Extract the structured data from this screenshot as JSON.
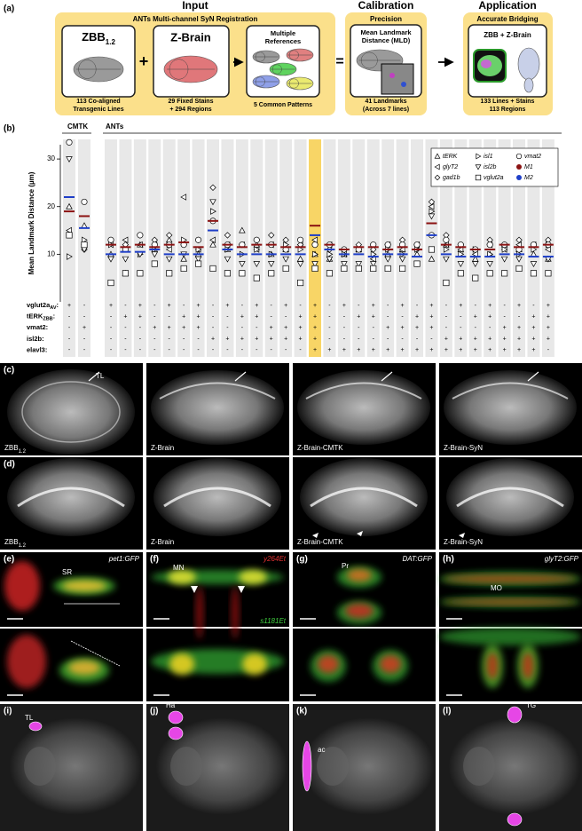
{
  "panel_a": {
    "label": "(a)",
    "input": {
      "header": "Input",
      "title": "ANTs Multi-channel SyN Registration",
      "zbb": {
        "name": "ZBB",
        "sub": "1.2",
        "caption": [
          "113 Co-aligned",
          "Transgenic Lines"
        ]
      },
      "plus": "+",
      "zbrain": {
        "name": "Z-Brain",
        "caption": [
          "29 Fixed Stains",
          "+ 294 Regions"
        ]
      },
      "references": {
        "title": [
          "Multiple",
          "References"
        ],
        "caption": "5 Common Patterns"
      }
    },
    "equals": "=",
    "calibration": {
      "header": "Calibration",
      "title": "Precision",
      "subtitle": [
        "Mean Landmark",
        "Distance (MLD)"
      ],
      "caption": [
        "41 Landmarks",
        "(Across 7 lines)"
      ]
    },
    "application": {
      "header": "Application",
      "title": "Accurate Bridging",
      "subtitle": "ZBB + Z-Brain",
      "caption": [
        "133 Lines + Stains",
        "113 Regions"
      ]
    }
  },
  "chart_data": {
    "type": "dot",
    "label": "(b)",
    "ylabel": "Mean Landmark Distance (µm)",
    "groups": [
      "CMTK",
      "ANTs"
    ],
    "categories": [
      null,
      null,
      null,
      null,
      null,
      null,
      null,
      null,
      null,
      null,
      null,
      null,
      null,
      null,
      null,
      null,
      null,
      null,
      null,
      null,
      null,
      null,
      null,
      null,
      null,
      null,
      null,
      null,
      null,
      null,
      null,
      null,
      null
    ],
    "ylim": [
      0,
      33
    ],
    "yticks": [
      10,
      20,
      30
    ],
    "highlight": {
      "category": 16,
      "color": "#f8d566"
    },
    "series": [
      {
        "name": "tERK",
        "marker": "triangle-up",
        "color": "#000000",
        "values": [
          20,
          16,
          10,
          6,
          12,
          11,
          13,
          9,
          10,
          12,
          11,
          15,
          12,
          10,
          11,
          9,
          10,
          9,
          10,
          11,
          12,
          10,
          11,
          10,
          9,
          12,
          11,
          9,
          10,
          12,
          11,
          10,
          9
        ]
      },
      {
        "name": "glyT2",
        "marker": "triangle-left",
        "color": "#000000",
        "values": [
          15,
          12,
          12,
          13,
          12,
          12,
          11,
          22,
          11,
          13,
          12,
          12,
          11,
          12,
          11,
          12,
          13,
          12,
          10,
          11,
          9,
          12,
          11,
          12,
          20,
          12,
          11,
          10,
          12,
          11,
          12,
          12,
          11
        ]
      },
      {
        "name": "gad1b",
        "marker": "diamond",
        "color": "#000000",
        "values": [
          14,
          11,
          13,
          12,
          14,
          13,
          14,
          12,
          13,
          24,
          14,
          12,
          13,
          14,
          13,
          12,
          12,
          11,
          11,
          12,
          11,
          12,
          13,
          11,
          21,
          14,
          12,
          11,
          13,
          12,
          13,
          12,
          13
        ]
      },
      {
        "name": "isl1",
        "marker": "triangle-right",
        "color": "#000000",
        "values": [
          9.5,
          13,
          12,
          11,
          10,
          11,
          12,
          13,
          11,
          19,
          11,
          10,
          11,
          10,
          12,
          11,
          10,
          10,
          10,
          11,
          10,
          11,
          10,
          11,
          19,
          11,
          10,
          11,
          10,
          11,
          10,
          11,
          12
        ]
      },
      {
        "name": "isl2b",
        "marker": "triangle-down",
        "color": "#000000",
        "values": [
          30,
          11,
          9,
          9,
          10,
          10,
          9,
          10,
          9,
          21,
          9,
          8,
          8,
          8,
          9,
          8,
          8,
          9,
          8,
          8,
          8,
          9,
          9,
          8,
          18,
          9,
          8,
          8,
          8,
          9,
          9,
          8,
          9
        ]
      },
      {
        "name": "vglut2a",
        "marker": "square",
        "color": "#000000",
        "values": [
          14,
          12,
          4,
          6,
          6,
          8,
          6,
          7,
          8,
          7,
          6,
          6,
          5,
          6,
          7,
          4,
          7,
          6,
          7,
          7,
          7,
          7,
          7,
          8,
          11,
          4,
          6,
          5,
          6,
          6,
          7,
          6,
          6
        ]
      },
      {
        "name": "vmat2",
        "marker": "circle",
        "color": "#000000",
        "values": [
          33.5,
          21,
          13,
          11,
          14,
          12,
          12,
          12,
          13,
          17,
          12,
          12,
          13,
          12,
          11,
          13,
          12,
          12,
          11,
          11,
          12,
          12,
          12,
          12,
          14,
          13,
          12,
          11,
          12,
          12,
          11,
          12,
          12
        ]
      },
      {
        "name": "M1",
        "marker": "dash",
        "color": "#8b1212",
        "values": [
          19,
          18,
          12,
          11.5,
          12,
          11.5,
          12,
          12.5,
          11.5,
          17,
          12,
          11.5,
          12,
          12,
          11.5,
          11.5,
          16,
          12,
          11,
          11.5,
          11.5,
          11,
          11.5,
          11,
          16.5,
          12,
          11.5,
          11,
          11,
          12,
          11.5,
          11.5,
          12
        ]
      },
      {
        "name": "M2",
        "marker": "dash",
        "color": "#1f3fc8",
        "values": [
          22,
          15.5,
          10,
          10.5,
          10.5,
          11,
          10,
          10,
          10,
          15,
          11,
          10,
          10,
          10,
          10,
          10,
          14,
          11,
          10,
          10,
          9.5,
          10,
          10,
          9.5,
          14,
          10,
          9.5,
          9.5,
          9.5,
          10,
          10,
          9.5,
          9.5
        ]
      }
    ],
    "combinations": [
      {
        "label": "vglut2a",
        "sub": "AV",
        "tail": ":",
        "values": [
          "+",
          "-",
          "+",
          "-",
          "+",
          "-",
          "+",
          "-",
          "+",
          "-",
          "+",
          "-",
          "+",
          "-",
          "+",
          "-",
          "+",
          "-",
          "+",
          "-",
          "+",
          "-",
          "+",
          "-",
          "+",
          "-",
          "+",
          "-",
          "+",
          "-",
          "+",
          "-",
          "+"
        ]
      },
      {
        "label": "tERK",
        "sub": "ZBB",
        "tail": ":",
        "values": [
          "-",
          "-",
          "-",
          "+",
          "+",
          "-",
          "-",
          "+",
          "+",
          "-",
          "-",
          "+",
          "+",
          "-",
          "-",
          "+",
          "+",
          "-",
          "-",
          "+",
          "+",
          "-",
          "-",
          "+",
          "+",
          "-",
          "-",
          "+",
          "+",
          "-",
          "-",
          "+",
          "+"
        ]
      },
      {
        "label": "vmat2:",
        "values": [
          "-",
          "+",
          "-",
          "-",
          "-",
          "+",
          "+",
          "+",
          "+",
          "-",
          "-",
          "-",
          "-",
          "+",
          "+",
          "+",
          "+",
          "-",
          "-",
          "-",
          "-",
          "+",
          "+",
          "+",
          "+",
          "-",
          "-",
          "-",
          "-",
          "+",
          "+",
          "+",
          "+"
        ]
      },
      {
        "label": "isl2b:",
        "values": [
          "-",
          "-",
          "-",
          "-",
          "-",
          "-",
          "-",
          "-",
          "-",
          "+",
          "+",
          "+",
          "+",
          "+",
          "+",
          "+",
          "+",
          "-",
          "-",
          "-",
          "-",
          "-",
          "-",
          "-",
          "-",
          "+",
          "+",
          "+",
          "+",
          "+",
          "+",
          "+",
          "+"
        ]
      },
      {
        "label": "elavl3:",
        "values": [
          "-",
          "-",
          "-",
          "-",
          "-",
          "-",
          "-",
          "-",
          "-",
          "-",
          "-",
          "-",
          "-",
          "-",
          "-",
          "-",
          "+",
          "+",
          "+",
          "+",
          "+",
          "+",
          "+",
          "+",
          "+",
          "+",
          "+",
          "+",
          "+",
          "+",
          "+",
          "+",
          "-"
        ]
      }
    ]
  },
  "panel_c": {
    "label": "(c)",
    "annotation": "TL",
    "captions": [
      {
        "text": "ZBB",
        "sub": "1.2"
      },
      {
        "text": "Z-Brain"
      },
      {
        "text": "Z-Brain-CMTK"
      },
      {
        "text": "Z-Brain-SyN"
      }
    ]
  },
  "panel_d": {
    "label": "(d)",
    "captions": [
      {
        "text": "ZBB",
        "sub": "1.2"
      },
      {
        "text": "Z-Brain"
      },
      {
        "text": "Z-Brain-CMTK"
      },
      {
        "text": "Z-Brain-SyN"
      }
    ]
  },
  "panels_e_h": [
    {
      "label": "(e)",
      "line": "pet1:GFP",
      "region": "SR"
    },
    {
      "label": "(f)",
      "line": "y264Et",
      "region": "MN",
      "line2": "s1181Et"
    },
    {
      "label": "(g)",
      "line": "DAT:GFP",
      "region": "Pr"
    },
    {
      "label": "(h)",
      "line": "glyT2:GFP",
      "region": "MO"
    }
  ],
  "panels_i_l": [
    {
      "label": "(i)",
      "region": "TL"
    },
    {
      "label": "(j)",
      "region": "Ha"
    },
    {
      "label": "(k)",
      "region": "ac"
    },
    {
      "label": "(l)",
      "region": "TG"
    }
  ]
}
